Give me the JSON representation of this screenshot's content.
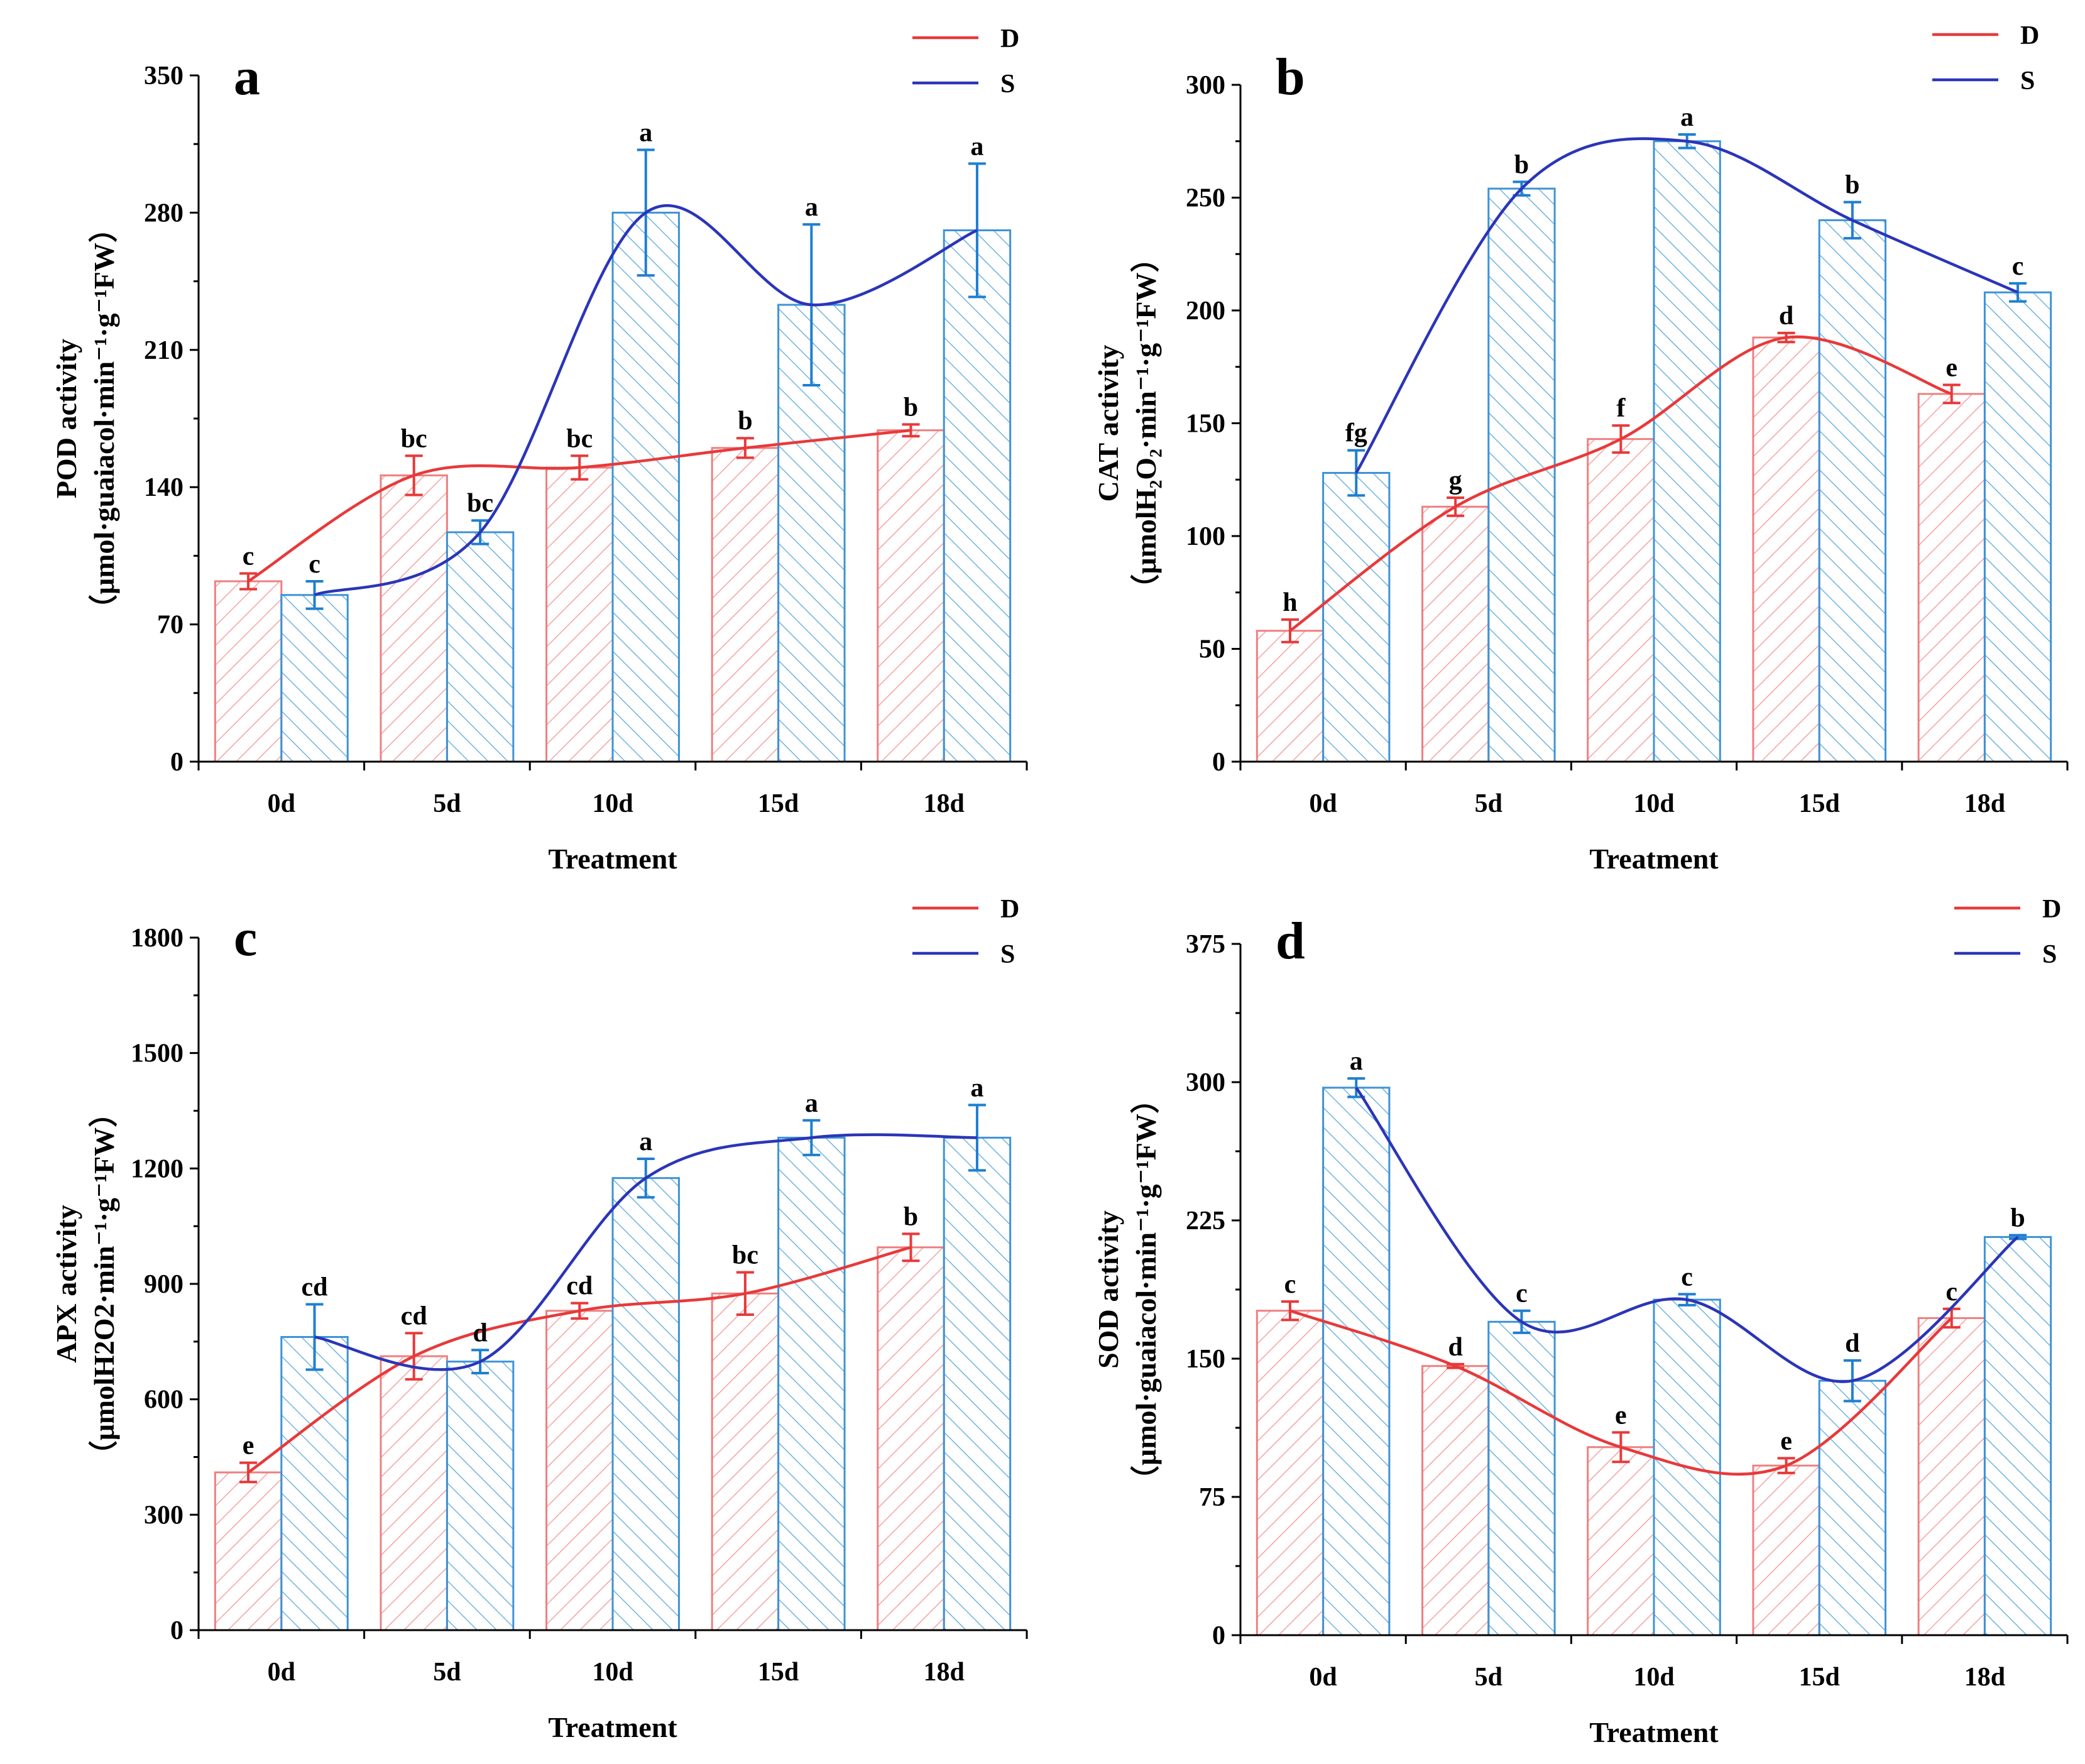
{
  "figure": {
    "legend": [
      {
        "name": "D",
        "color": "#e8393a"
      },
      {
        "name": "S",
        "color": "#2b35b8"
      }
    ],
    "colors": {
      "D_line": "#e8393a",
      "S_line": "#2b35b8",
      "D_bar_edge": "#ef7f80",
      "S_bar_edge": "#3d93d6",
      "D_hatch": "#f4a3a3",
      "S_hatch": "#6fb4e0",
      "D_err": "#e8393a",
      "S_err": "#1f7fd0"
    }
  },
  "chart_data": [
    {
      "panel": "a",
      "type": "bar",
      "xlabel": "Treatment",
      "ylabel": "POD activity",
      "ylabel_unit": "（μmol·guaiacol·min⁻¹·g⁻¹FW）",
      "ylim": [
        0,
        350
      ],
      "yticks": [
        "0",
        "70",
        "140",
        "210",
        "280",
        "350"
      ],
      "categories": [
        "0d",
        "5d",
        "10d",
        "15d",
        "18d"
      ],
      "series": [
        {
          "name": "D",
          "values": [
            92,
            146,
            150,
            160,
            169
          ],
          "errors": [
            4,
            10,
            6,
            5,
            3
          ],
          "labels": [
            "c",
            "bc",
            "bc",
            "b",
            "b"
          ]
        },
        {
          "name": "S",
          "values": [
            85,
            117,
            280,
            233,
            271
          ],
          "errors": [
            7,
            6,
            32,
            41,
            34
          ],
          "labels": [
            "c",
            "bc",
            "a",
            "a",
            "a"
          ]
        }
      ]
    },
    {
      "panel": "b",
      "type": "bar",
      "xlabel": "Treatment",
      "ylabel": "CAT activity",
      "ylabel_unit": "（μmolH₂O₂·min⁻¹·g⁻¹FW）",
      "ylim": [
        0,
        300
      ],
      "yticks": [
        "0",
        "50",
        "100",
        "150",
        "200",
        "250",
        "300"
      ],
      "categories": [
        "0d",
        "5d",
        "10d",
        "15d",
        "18d"
      ],
      "series": [
        {
          "name": "D",
          "values": [
            58,
            113,
            143,
            188,
            163
          ],
          "errors": [
            5,
            4,
            6,
            2,
            4
          ],
          "labels": [
            "h",
            "g",
            "f",
            "d",
            "e"
          ]
        },
        {
          "name": "S",
          "values": [
            128,
            254,
            275,
            240,
            208
          ],
          "errors": [
            10,
            3,
            3,
            8,
            4
          ],
          "labels": [
            "fg",
            "b",
            "a",
            "b",
            "c"
          ]
        }
      ]
    },
    {
      "panel": "c",
      "type": "bar",
      "xlabel": "Treatment",
      "ylabel": "APX activity",
      "ylabel_unit": "（μmolH2O2·min⁻¹·g⁻¹FW）",
      "ylim": [
        0,
        1800
      ],
      "yticks": [
        "0",
        "300",
        "600",
        "900",
        "1200",
        "1500",
        "1800"
      ],
      "categories": [
        "0d",
        "5d",
        "10d",
        "15d",
        "18d"
      ],
      "series": [
        {
          "name": "D",
          "values": [
            410,
            712,
            830,
            875,
            995
          ],
          "errors": [
            25,
            60,
            20,
            55,
            35
          ],
          "labels": [
            "e",
            "cd",
            "cd",
            "bc",
            "b"
          ]
        },
        {
          "name": "S",
          "values": [
            762,
            698,
            1175,
            1280,
            1280
          ],
          "errors": [
            85,
            30,
            50,
            45,
            85
          ],
          "labels": [
            "cd",
            "d",
            "a",
            "a",
            "a"
          ]
        }
      ]
    },
    {
      "panel": "d",
      "type": "bar",
      "xlabel": "Treatment",
      "ylabel": "SOD activity",
      "ylabel_unit": "（μmol·guaiacol·min⁻¹·g⁻¹FW）",
      "ylim": [
        0,
        375
      ],
      "yticks": [
        "0",
        "75",
        "150",
        "225",
        "300",
        "375"
      ],
      "categories": [
        "0d",
        "5d",
        "10d",
        "15d",
        "18d"
      ],
      "series": [
        {
          "name": "D",
          "values": [
            176,
            146,
            102,
            92,
            172
          ],
          "errors": [
            5,
            1,
            8,
            4,
            5
          ],
          "labels": [
            "c",
            "d",
            "e",
            "e",
            "c"
          ]
        },
        {
          "name": "S",
          "values": [
            297,
            170,
            182,
            138,
            216
          ],
          "errors": [
            5,
            6,
            3,
            11,
            1
          ],
          "labels": [
            "a",
            "c",
            "c",
            "d",
            "b"
          ]
        }
      ]
    }
  ]
}
